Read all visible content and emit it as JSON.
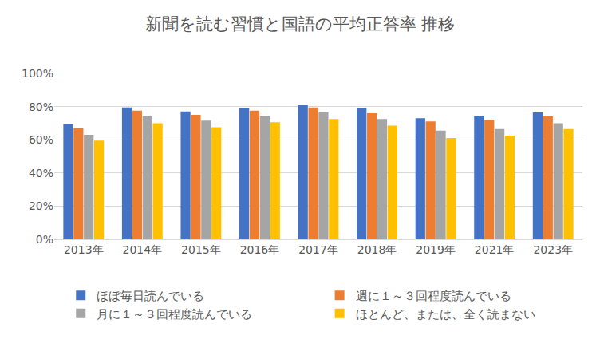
{
  "chart_data": {
    "type": "bar",
    "title": "新聞を読む習慣と国語の平均正答率 推移",
    "categories": [
      "2013年",
      "2014年",
      "2015年",
      "2016年",
      "2017年",
      "2018年",
      "2019年",
      "2021年",
      "2023年"
    ],
    "series": [
      {
        "name": "ほぼ毎日読んでいる",
        "color": "#4472c4",
        "values": [
          69.5,
          79.5,
          77,
          79,
          81,
          79,
          73,
          74.5,
          76.5
        ]
      },
      {
        "name": "週に１～３回程度読んでいる",
        "color": "#ed7d31",
        "values": [
          67,
          77.5,
          75,
          77.5,
          79.5,
          76,
          71,
          72,
          74
        ]
      },
      {
        "name": "月に１～３回程度読んでいる",
        "color": "#a5a5a5",
        "values": [
          63,
          74,
          71.5,
          74,
          76.5,
          72.5,
          65.5,
          66.5,
          70
        ]
      },
      {
        "name": "ほとんど、または、全く読まない",
        "color": "#ffc000",
        "values": [
          59.5,
          70,
          67.5,
          70.5,
          72.5,
          68.5,
          61,
          62.5,
          66.5
        ]
      }
    ],
    "ylim": [
      0,
      100
    ],
    "yticks": [
      {
        "value": 0,
        "label": "0%"
      },
      {
        "value": 20,
        "label": "20%"
      },
      {
        "value": 40,
        "label": "40%"
      },
      {
        "value": 60,
        "label": "60%"
      },
      {
        "value": 80,
        "label": "80%"
      },
      {
        "value": 100,
        "label": "100%"
      }
    ],
    "grid": true,
    "legend": "bottom"
  }
}
